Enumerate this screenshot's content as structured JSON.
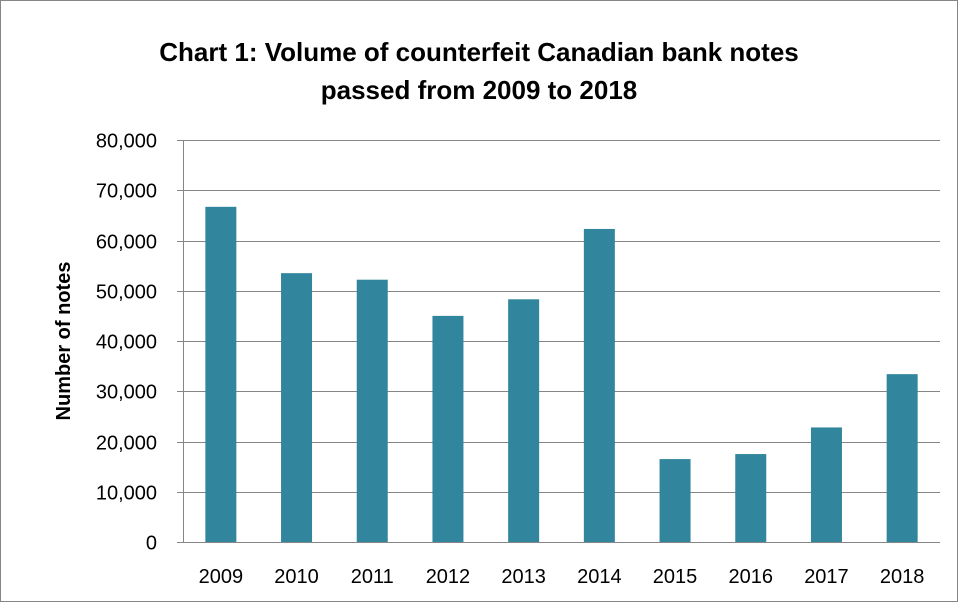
{
  "chart_data": {
    "type": "bar",
    "title": "Chart 1: Volume of counterfeit Canadian bank notes passed from 2009 to 2018",
    "title_lines": [
      "Chart 1: Volume of counterfeit Canadian bank notes",
      "passed from 2009 to 2018"
    ],
    "xlabel": "",
    "ylabel": "Number of notes",
    "categories": [
      "2009",
      "2010",
      "2011",
      "2012",
      "2013",
      "2014",
      "2015",
      "2016",
      "2017",
      "2018"
    ],
    "values": [
      66700,
      53500,
      52200,
      45000,
      48300,
      62300,
      16500,
      17500,
      22800,
      33400
    ],
    "ylim": [
      0,
      80000
    ],
    "yticks": [
      0,
      10000,
      20000,
      30000,
      40000,
      50000,
      60000,
      70000,
      80000
    ],
    "ytick_labels": [
      "0",
      "10,000",
      "20,000",
      "30,000",
      "40,000",
      "50,000",
      "60,000",
      "70,000",
      "80,000"
    ],
    "grid": true,
    "legend": "none",
    "colors": {
      "bar": "#31859C",
      "grid": "#868686",
      "axis": "#868686",
      "frame": "#868686"
    }
  }
}
